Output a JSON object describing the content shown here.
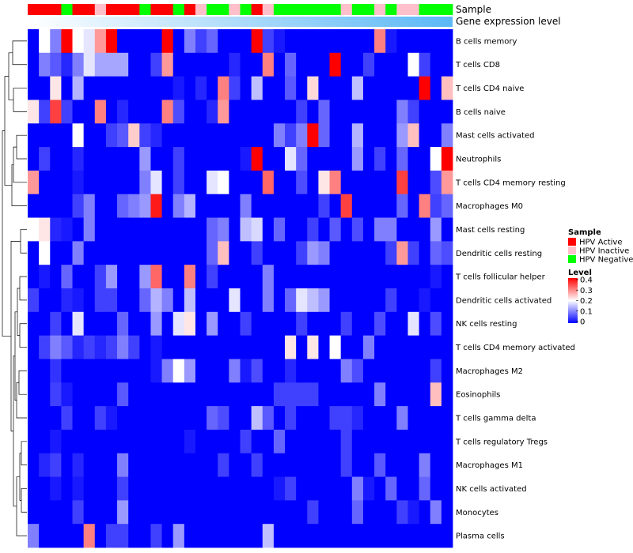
{
  "chart_data": {
    "type": "heatmap",
    "annotation_labels": [
      "Sample",
      "Gene expression level"
    ],
    "rows": [
      "B cells memory",
      "T cells CD8",
      "T cells CD4 naive",
      "B cells naive",
      "Mast cells activated",
      "Neutrophils",
      "T cells CD4 memory resting",
      "Macrophages M0",
      "Mast cells resting",
      "Dendritic cells resting",
      "T cells follicular helper",
      "Dendritic cells activated",
      "NK cells resting",
      "T cells CD4 memory activated",
      "Macrophages M2",
      "Eosinophils",
      "T cells gamma delta",
      "T cells regulatory  Tregs",
      "Macrophages M1",
      "NK cells activated",
      "Monocytes",
      "Plasma cells"
    ],
    "sample_groups": [
      "A",
      "A",
      "A",
      "N",
      "A",
      "A",
      "I",
      "A",
      "A",
      "A",
      "N",
      "A",
      "A",
      "N",
      "A",
      "I",
      "N",
      "N",
      "I",
      "N",
      "A",
      "I",
      "N",
      "N",
      "N",
      "N",
      "N",
      "N",
      "I",
      "N",
      "N",
      "I",
      "N",
      "I",
      "I",
      "N",
      "N",
      "N"
    ],
    "expression_gradient_columns": 38,
    "values": [
      [
        0.0,
        0.2,
        0.1,
        0.4,
        0.2,
        0.18,
        0.28,
        0.4,
        0.0,
        0.0,
        0.0,
        0.0,
        0.4,
        0.0,
        0.1,
        0.05,
        0.08,
        0.0,
        0.0,
        0.0,
        0.4,
        0.05,
        0.02,
        0.0,
        0.0,
        0.0,
        0.0,
        0.0,
        0.0,
        0.0,
        0.0,
        0.3,
        0.02,
        0.0,
        0.0,
        0.0,
        0.0,
        0.0
      ],
      [
        0.0,
        0.1,
        0.07,
        0.03,
        0.1,
        0.18,
        0.13,
        0.13,
        0.13,
        0.0,
        0.0,
        0.05,
        0.28,
        0.0,
        0.0,
        0.0,
        0.0,
        0.0,
        0.03,
        0.0,
        0.0,
        0.3,
        0.0,
        0.08,
        0.0,
        0.0,
        0.0,
        0.4,
        0.0,
        0.0,
        0.05,
        0.0,
        0.0,
        0.0,
        0.2,
        0.05,
        0.0,
        0.0
      ],
      [
        0.0,
        0.0,
        0.22,
        0.0,
        0.14,
        0.0,
        0.0,
        0.0,
        0.0,
        0.0,
        0.0,
        0.0,
        0.0,
        0.02,
        0.0,
        0.03,
        0.0,
        0.3,
        0.05,
        0.0,
        0.15,
        0.0,
        0.0,
        0.07,
        0.0,
        0.23,
        0.0,
        0.0,
        0.0,
        0.15,
        0.0,
        0.0,
        0.0,
        0.0,
        0.0,
        0.4,
        0.0,
        0.25
      ],
      [
        0.22,
        0.05,
        0.35,
        0.05,
        0.0,
        0.0,
        0.3,
        0.0,
        0.03,
        0.0,
        0.0,
        0.0,
        0.3,
        0.06,
        0.0,
        0.0,
        0.03,
        0.28,
        0.0,
        0.0,
        0.0,
        0.0,
        0.0,
        0.0,
        0.05,
        0.0,
        0.08,
        0.0,
        0.0,
        0.0,
        0.0,
        0.0,
        0.0,
        0.1,
        0.05,
        0.0,
        0.0,
        0.0
      ],
      [
        0.0,
        0.0,
        0.0,
        0.0,
        0.2,
        0.0,
        0.0,
        0.05,
        0.07,
        0.24,
        0.05,
        0.03,
        0.0,
        0.0,
        0.0,
        0.0,
        0.0,
        0.0,
        0.0,
        0.0,
        0.0,
        0.0,
        0.1,
        0.05,
        0.1,
        0.4,
        0.08,
        0.0,
        0.0,
        0.14,
        0.0,
        0.0,
        0.0,
        0.12,
        0.25,
        0.0,
        0.0,
        0.1
      ],
      [
        0.0,
        0.05,
        0.0,
        0.0,
        0.03,
        0.0,
        0.0,
        0.0,
        0.0,
        0.0,
        0.12,
        0.0,
        0.0,
        0.05,
        0.0,
        0.0,
        0.0,
        0.0,
        0.0,
        0.02,
        0.4,
        0.0,
        0.0,
        0.18,
        0.08,
        0.0,
        0.0,
        0.0,
        0.0,
        0.12,
        0.0,
        0.05,
        0.0,
        0.08,
        0.0,
        0.0,
        0.2,
        0.4
      ],
      [
        0.28,
        0.0,
        0.0,
        0.0,
        0.02,
        0.0,
        0.0,
        0.0,
        0.0,
        0.0,
        0.1,
        0.18,
        0.0,
        0.05,
        0.0,
        0.0,
        0.18,
        0.2,
        0.0,
        0.0,
        0.0,
        0.32,
        0.0,
        0.0,
        0.06,
        0.0,
        0.22,
        0.3,
        0.0,
        0.0,
        0.0,
        0.0,
        0.0,
        0.35,
        0.0,
        0.0,
        0.06,
        0.28
      ],
      [
        0.0,
        0.0,
        0.0,
        0.0,
        0.05,
        0.1,
        0.0,
        0.0,
        0.08,
        0.1,
        0.12,
        0.38,
        0.0,
        0.1,
        0.14,
        0.0,
        0.0,
        0.0,
        0.0,
        0.1,
        0.0,
        0.0,
        0.0,
        0.0,
        0.0,
        0.0,
        0.05,
        0.0,
        0.35,
        0.0,
        0.0,
        0.0,
        0.0,
        0.08,
        0.0,
        0.3,
        0.05,
        0.08
      ],
      [
        0.2,
        0.22,
        0.03,
        0.02,
        0.0,
        0.1,
        0.0,
        0.0,
        0.0,
        0.0,
        0.0,
        0.0,
        0.0,
        0.0,
        0.0,
        0.0,
        0.08,
        0.1,
        0.0,
        0.15,
        0.17,
        0.0,
        0.08,
        0.0,
        0.0,
        0.05,
        0.0,
        0.07,
        0.0,
        0.06,
        0.0,
        0.1,
        0.1,
        0.0,
        0.0,
        0.0,
        0.12,
        0.0
      ],
      [
        0.0,
        0.2,
        0.0,
        0.0,
        0.1,
        0.0,
        0.0,
        0.0,
        0.0,
        0.0,
        0.0,
        0.0,
        0.0,
        0.0,
        0.0,
        0.0,
        0.08,
        0.25,
        0.0,
        0.0,
        0.05,
        0.0,
        0.0,
        0.0,
        0.05,
        0.12,
        0.1,
        0.0,
        0.0,
        0.0,
        0.0,
        0.0,
        0.05,
        0.28,
        0.05,
        0.0,
        0.08,
        0.06
      ],
      [
        0.0,
        0.02,
        0.0,
        0.08,
        0.0,
        0.0,
        0.05,
        0.12,
        0.0,
        0.0,
        0.12,
        0.32,
        0.0,
        0.0,
        0.3,
        0.0,
        0.05,
        0.0,
        0.0,
        0.0,
        0.0,
        0.1,
        0.0,
        0.0,
        0.0,
        0.0,
        0.0,
        0.0,
        0.0,
        0.0,
        0.0,
        0.0,
        0.0,
        0.0,
        0.0,
        0.0,
        0.02,
        0.0
      ],
      [
        0.05,
        0.0,
        0.0,
        0.03,
        0.02,
        0.0,
        0.05,
        0.05,
        0.0,
        0.0,
        0.08,
        0.14,
        0.1,
        0.0,
        0.15,
        0.0,
        0.0,
        0.0,
        0.18,
        0.0,
        0.0,
        0.1,
        0.0,
        0.08,
        0.18,
        0.15,
        0.12,
        0.0,
        0.0,
        0.0,
        0.0,
        0.0,
        0.05,
        0.0,
        0.0,
        0.02,
        0.0,
        0.0
      ],
      [
        0.0,
        0.0,
        0.05,
        0.0,
        0.18,
        0.0,
        0.0,
        0.0,
        0.08,
        0.0,
        0.0,
        0.12,
        0.0,
        0.18,
        0.22,
        0.0,
        0.12,
        0.0,
        0.0,
        0.05,
        0.0,
        0.0,
        0.0,
        0.0,
        0.05,
        0.0,
        0.0,
        0.0,
        0.05,
        0.0,
        0.0,
        0.06,
        0.0,
        0.0,
        0.18,
        0.0,
        0.06,
        0.0
      ],
      [
        0.0,
        0.05,
        0.1,
        0.07,
        0.03,
        0.05,
        0.03,
        0.05,
        0.1,
        0.05,
        0.0,
        0.02,
        0.0,
        0.0,
        0.0,
        0.0,
        0.0,
        0.0,
        0.0,
        0.0,
        0.0,
        0.0,
        0.0,
        0.22,
        0.0,
        0.22,
        0.0,
        0.2,
        0.0,
        0.0,
        0.1,
        0.0,
        0.0,
        0.0,
        0.0,
        0.0,
        0.0,
        0.0
      ],
      [
        0.0,
        0.0,
        0.04,
        0.0,
        0.0,
        0.0,
        0.0,
        0.0,
        0.0,
        0.0,
        0.0,
        0.02,
        0.1,
        0.2,
        0.12,
        0.0,
        0.0,
        0.0,
        0.1,
        0.02,
        0.06,
        0.0,
        0.0,
        0.03,
        0.0,
        0.0,
        0.0,
        0.0,
        0.1,
        0.06,
        0.0,
        0.0,
        0.0,
        0.0,
        0.0,
        0.0,
        0.05,
        0.0
      ],
      [
        0.0,
        0.0,
        0.05,
        0.02,
        0.0,
        0.0,
        0.0,
        0.0,
        0.07,
        0.0,
        0.0,
        0.0,
        0.0,
        0.0,
        0.0,
        0.0,
        0.0,
        0.0,
        0.0,
        0.0,
        0.0,
        0.0,
        0.05,
        0.05,
        0.05,
        0.05,
        0.0,
        0.0,
        0.0,
        0.0,
        0.0,
        0.1,
        0.0,
        0.0,
        0.0,
        0.0,
        0.25,
        0.0
      ],
      [
        0.0,
        0.0,
        0.0,
        0.05,
        0.0,
        0.0,
        0.05,
        0.02,
        0.0,
        0.0,
        0.0,
        0.0,
        0.0,
        0.0,
        0.0,
        0.0,
        0.08,
        0.06,
        0.0,
        0.0,
        0.15,
        0.07,
        0.0,
        0.05,
        0.0,
        0.0,
        0.0,
        0.05,
        0.05,
        0.03,
        0.0,
        0.0,
        0.0,
        0.1,
        0.0,
        0.0,
        0.0,
        0.0
      ],
      [
        0.0,
        0.0,
        0.02,
        0.0,
        0.0,
        0.0,
        0.0,
        0.0,
        0.0,
        0.0,
        0.0,
        0.0,
        0.0,
        0.0,
        0.02,
        0.0,
        0.0,
        0.0,
        0.0,
        0.05,
        0.0,
        0.0,
        0.08,
        0.0,
        0.0,
        0.0,
        0.0,
        0.0,
        0.05,
        0.0,
        0.0,
        0.0,
        0.0,
        0.0,
        0.0,
        0.0,
        0.0,
        0.0
      ],
      [
        0.0,
        0.03,
        0.05,
        0.0,
        0.03,
        0.0,
        0.0,
        0.0,
        0.1,
        0.0,
        0.0,
        0.0,
        0.0,
        0.0,
        0.0,
        0.0,
        0.0,
        0.05,
        0.0,
        0.0,
        0.05,
        0.0,
        0.0,
        0.0,
        0.0,
        0.0,
        0.0,
        0.0,
        0.05,
        0.0,
        0.0,
        0.07,
        0.0,
        0.0,
        0.0,
        0.1,
        0.0,
        0.0
      ],
      [
        0.0,
        0.0,
        0.02,
        0.0,
        0.02,
        0.0,
        0.0,
        0.0,
        0.05,
        0.0,
        0.0,
        0.0,
        0.0,
        0.0,
        0.0,
        0.0,
        0.0,
        0.0,
        0.0,
        0.0,
        0.0,
        0.0,
        0.02,
        0.05,
        0.0,
        0.0,
        0.0,
        0.0,
        0.0,
        0.1,
        0.02,
        0.0,
        0.08,
        0.0,
        0.0,
        0.08,
        0.0,
        0.0
      ],
      [
        0.0,
        0.0,
        0.0,
        0.0,
        0.05,
        0.0,
        0.0,
        0.0,
        0.12,
        0.0,
        0.0,
        0.0,
        0.0,
        0.0,
        0.0,
        0.0,
        0.0,
        0.0,
        0.0,
        0.0,
        0.0,
        0.0,
        0.0,
        0.0,
        0.0,
        0.05,
        0.0,
        0.0,
        0.0,
        0.08,
        0.0,
        0.0,
        0.0,
        0.05,
        0.02,
        0.0,
        0.1,
        0.0
      ],
      [
        0.1,
        0.0,
        0.0,
        0.0,
        0.0,
        0.3,
        0.0,
        0.05,
        0.05,
        0.0,
        0.0,
        0.05,
        0.0,
        0.12,
        0.0,
        0.0,
        0.0,
        0.0,
        0.0,
        0.0,
        0.0,
        0.15,
        0.0,
        0.0,
        0.0,
        0.0,
        0.0,
        0.0,
        0.0,
        0.0,
        0.0,
        0.0,
        0.0,
        0.0,
        0.0,
        0.0,
        0.0,
        0.0
      ]
    ],
    "colorscale": {
      "min": 0,
      "max": 0.4,
      "low": "#0000FF",
      "mid": "#FFFFFF",
      "high": "#FF0000"
    },
    "legend": {
      "sample": {
        "title": "Sample",
        "entries": [
          {
            "key": "A",
            "label": "HPV Active",
            "color": "#FF0000"
          },
          {
            "key": "I",
            "label": "HPV Inactive",
            "color": "#FFC0CB"
          },
          {
            "key": "N",
            "label": "HPV Negative",
            "color": "#00FF00"
          }
        ]
      },
      "level": {
        "title": "Level",
        "ticks": [
          "0.4",
          "0.3",
          "0.2",
          "0.1",
          "0"
        ]
      }
    }
  }
}
